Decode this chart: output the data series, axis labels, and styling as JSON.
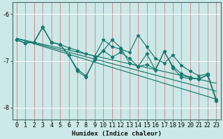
{
  "xlabel": "Humidex (Indice chaleur)",
  "bg_color": "#cce8e8",
  "grid_color": "#e8a0a0",
  "line_color": "#1a7a6e",
  "marker_color": "#1a7a6e",
  "xlim": [
    -0.5,
    23.5
  ],
  "ylim": [
    -8.25,
    -5.75
  ],
  "yticks": [
    -8,
    -7,
    -6
  ],
  "xticks": [
    0,
    1,
    2,
    3,
    4,
    5,
    6,
    7,
    8,
    9,
    10,
    11,
    12,
    13,
    14,
    15,
    16,
    17,
    18,
    19,
    20,
    21,
    22,
    23
  ],
  "series1_x": [
    0,
    1,
    2,
    3,
    4,
    5,
    6,
    7,
    8,
    9,
    10,
    11,
    12,
    13,
    14,
    15,
    16,
    17,
    18,
    19,
    20,
    21,
    22,
    23
  ],
  "series1_y": [
    -6.55,
    -6.62,
    -6.6,
    -6.28,
    -6.6,
    -6.65,
    -6.72,
    -6.78,
    -6.85,
    -6.9,
    -6.55,
    -6.7,
    -6.75,
    -6.82,
    -6.45,
    -6.7,
    -6.95,
    -7.05,
    -6.88,
    -7.1,
    -7.22,
    -7.32,
    -7.28,
    -7.82
  ],
  "series2_x": [
    0,
    1,
    2,
    3,
    4,
    5,
    6,
    7,
    8,
    9,
    10,
    11,
    12,
    13,
    14,
    15,
    16,
    17,
    18,
    19,
    20,
    21,
    22,
    23
  ],
  "series2_y": [
    -6.55,
    -6.62,
    -6.6,
    -6.28,
    -6.6,
    -6.65,
    -6.88,
    -7.18,
    -7.32,
    -6.98,
    -6.78,
    -6.92,
    -6.82,
    -6.95,
    -7.12,
    -7.08,
    -7.18,
    -6.8,
    -7.12,
    -7.28,
    -7.35,
    -7.4,
    -7.3,
    -7.85
  ],
  "series3_x": [
    0,
    1,
    2,
    3,
    4,
    5,
    6,
    7,
    8,
    9,
    10,
    11,
    12,
    13,
    14,
    15,
    16,
    17,
    18,
    19,
    20,
    21,
    22,
    23
  ],
  "series3_y": [
    -6.55,
    -6.62,
    -6.6,
    -6.28,
    -6.6,
    -6.65,
    -6.88,
    -7.22,
    -7.35,
    -6.95,
    -6.78,
    -6.55,
    -6.72,
    -7.05,
    -7.12,
    -6.85,
    -7.2,
    -6.8,
    -7.15,
    -7.35,
    -7.38,
    -7.38,
    -7.3,
    -7.85
  ],
  "trend1_x": [
    0,
    23
  ],
  "trend1_y": [
    -6.52,
    -7.48
  ],
  "trend2_x": [
    0,
    23
  ],
  "trend2_y": [
    -6.52,
    -7.65
  ],
  "trend3_x": [
    0,
    23
  ],
  "trend3_y": [
    -6.52,
    -7.82
  ]
}
